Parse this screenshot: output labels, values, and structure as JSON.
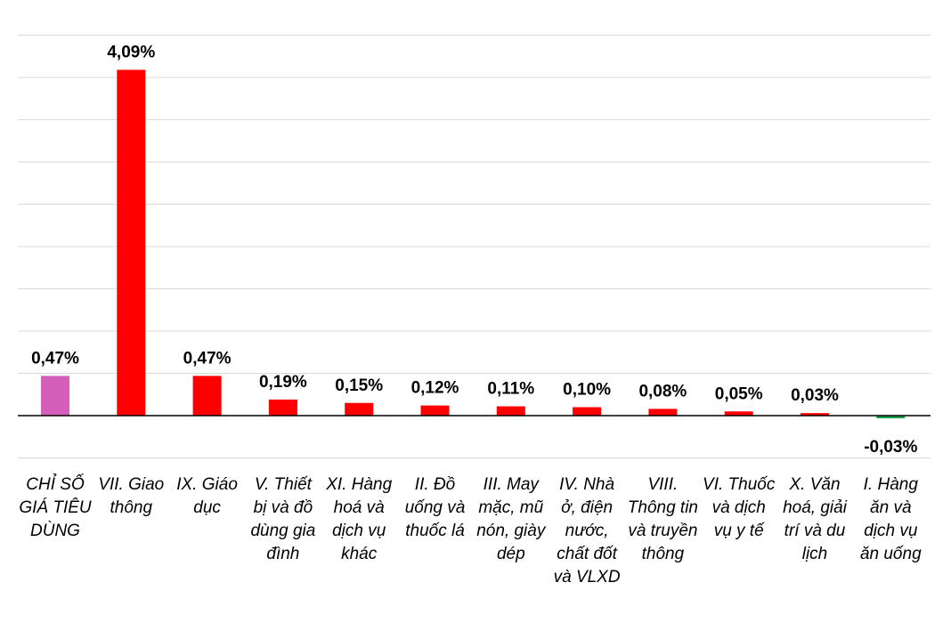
{
  "chart_data": {
    "type": "bar",
    "categories": [
      "CHỈ SỐ GIÁ TIÊU DÙNG",
      "VII. Giao thông",
      "IX. Giáo dục",
      "V. Thiết bị và đồ dùng gia đình",
      "XI. Hàng hoá và dịch vụ khác",
      "II. Đồ uống và thuốc lá",
      "III. May mặc, mũ nón, giày dép",
      "IV. Nhà ở, điện nước, chất đốt và VLXD",
      "VIII. Thông tin và truyền thông",
      "VI. Thuốc và dịch vụ y tế",
      "X. Văn hoá, giải trí và du lịch",
      "I. Hàng ăn và dịch vụ ăn uống"
    ],
    "category_lines": [
      [
        "CHỈ SỐ",
        "GIÁ TIÊU",
        "DÙNG"
      ],
      [
        "VII. Giao",
        "thông"
      ],
      [
        "IX. Giáo",
        "dục"
      ],
      [
        "V. Thiết",
        "bị và đồ",
        "dùng gia",
        "đình"
      ],
      [
        "XI. Hàng",
        "hoá và",
        "dịch vụ",
        "khác"
      ],
      [
        "II. Đồ",
        "uống và",
        "thuốc lá"
      ],
      [
        "III. May",
        "mặc, mũ",
        "nón, giày",
        "dép"
      ],
      [
        "IV. Nhà",
        "ở, điện",
        "nước,",
        "chất đốt",
        "và VLXD"
      ],
      [
        "VIII.",
        "Thông tin",
        "và truyền",
        "thông"
      ],
      [
        "VI. Thuốc",
        "và dịch",
        "vụ y tế"
      ],
      [
        "X. Văn",
        "hoá, giải",
        "trí và du",
        "lịch"
      ],
      [
        "I. Hàng",
        "ăn và",
        "dịch vụ",
        "ăn uống"
      ]
    ],
    "values": [
      0.47,
      4.09,
      0.47,
      0.19,
      0.15,
      0.12,
      0.11,
      0.1,
      0.08,
      0.05,
      0.03,
      -0.03
    ],
    "value_labels": [
      "0,47%",
      "4,09%",
      "0,47%",
      "0,19%",
      "0,15%",
      "0,12%",
      "0,11%",
      "0,10%",
      "0,08%",
      "0,05%",
      "0,03%",
      "-0,03%"
    ],
    "ylim": [
      -0.5,
      4.5
    ],
    "grid": true,
    "legend": "none",
    "colors": {
      "index": "#d45fba",
      "positive": "#ff0000",
      "negative": "#1aa14d",
      "grid": "#d9d9d9",
      "axis": "#000000"
    }
  }
}
